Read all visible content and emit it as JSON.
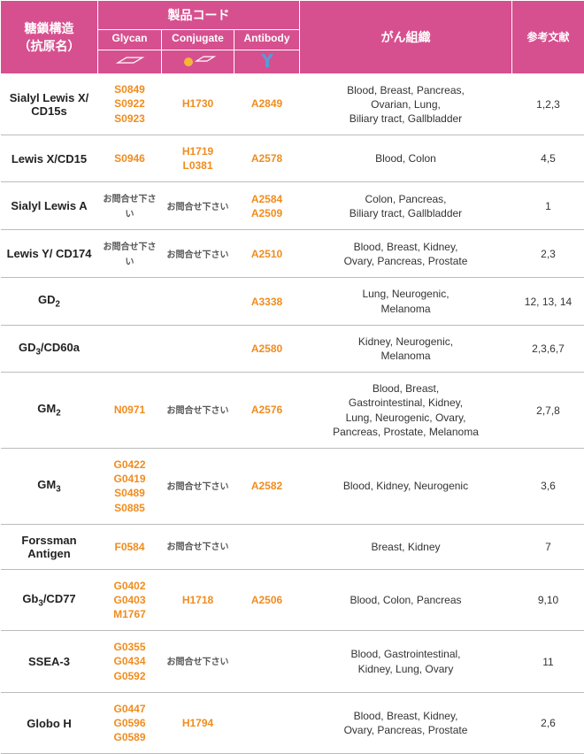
{
  "header": {
    "structure": "糖鎖構造\n（抗原名）",
    "productCode": "製品コード",
    "glycan": "Glycan",
    "conjugate": "Conjugate",
    "antibody": "Antibody",
    "tissue": "がん組織",
    "refs": "参考文献"
  },
  "colors": {
    "headerBg": "#d6508f",
    "codeColor": "#f08c1e",
    "antibodyIcon": "#5b9bd5",
    "conjugateDot": "#f5b638"
  },
  "contactText": "お問合せ下さい",
  "rows": [
    {
      "name": "Sialyl Lewis X/\nCD15s",
      "glycan": [
        "S0849",
        "S0922",
        "S0923"
      ],
      "conjugate": [
        "H1730"
      ],
      "antibody": [
        "A2849"
      ],
      "tissue": "Blood, Breast, Pancreas,\nOvarian, Lung,\nBiliary tract, Gallbladder",
      "refs": "1,2,3"
    },
    {
      "name": "Lewis X/CD15",
      "glycan": [
        "S0946"
      ],
      "conjugate": [
        "H1719",
        "L0381"
      ],
      "antibody": [
        "A2578"
      ],
      "tissue": "Blood, Colon",
      "refs": "4,5"
    },
    {
      "name": "Sialyl Lewis A",
      "glycan": "contact",
      "conjugate": "contact",
      "antibody": [
        "A2584",
        "A2509"
      ],
      "tissue": "Colon, Pancreas,\nBiliary tract, Gallbladder",
      "refs": "1"
    },
    {
      "name": "Lewis Y/ CD174",
      "glycan": "contact",
      "conjugate": "contact",
      "antibody": [
        "A2510"
      ],
      "tissue": "Blood, Breast, Kidney,\nOvary, Pancreas, Prostate",
      "refs": "2,3"
    },
    {
      "name": "GD<sub>2</sub>",
      "glycan": [],
      "conjugate": [],
      "antibody": [
        "A3338"
      ],
      "tissue": "Lung, Neurogenic,\nMelanoma",
      "refs": "12, 13, 14"
    },
    {
      "name": "GD<sub>3</sub>/CD60a",
      "glycan": [],
      "conjugate": [],
      "antibody": [
        "A2580"
      ],
      "tissue": "Kidney, Neurogenic,\nMelanoma",
      "refs": "2,3,6,7"
    },
    {
      "name": "GM<sub>2</sub>",
      "glycan": [
        "N0971"
      ],
      "conjugate": "contact",
      "antibody": [
        "A2576"
      ],
      "tissue": "Blood, Breast,\nGastrointestinal, Kidney,\nLung, Neurogenic, Ovary,\nPancreas, Prostate, Melanoma",
      "refs": "2,7,8"
    },
    {
      "name": "GM<sub>3</sub>",
      "glycan": [
        "G0422",
        "G0419",
        "S0489",
        "S0885"
      ],
      "conjugate": "contact",
      "antibody": [
        "A2582"
      ],
      "tissue": "Blood, Kidney, Neurogenic",
      "refs": "3,6"
    },
    {
      "name": "Forssman\nAntigen",
      "glycan": [
        "F0584"
      ],
      "conjugate": "contact",
      "antibody": [],
      "tissue": "Breast, Kidney",
      "refs": "7"
    },
    {
      "name": "Gb<sub>3</sub>/CD77",
      "glycan": [
        "G0402",
        "G0403",
        "M1767"
      ],
      "conjugate": [
        "H1718"
      ],
      "antibody": [
        "A2506"
      ],
      "tissue": "Blood, Colon, Pancreas",
      "refs": "9,10"
    },
    {
      "name": "SSEA-3",
      "glycan": [
        "G0355",
        "G0434",
        "G0592"
      ],
      "conjugate": "contact",
      "antibody": [],
      "tissue": "Blood, Gastrointestinal,\nKidney, Lung, Ovary",
      "refs": "11"
    },
    {
      "name": "Globo H",
      "glycan": [
        "G0447",
        "G0596",
        "G0589"
      ],
      "conjugate": [
        "H1794"
      ],
      "antibody": [],
      "tissue": "Blood, Breast, Kidney,\nOvary, Pancreas, Prostate",
      "refs": "2,6"
    }
  ]
}
